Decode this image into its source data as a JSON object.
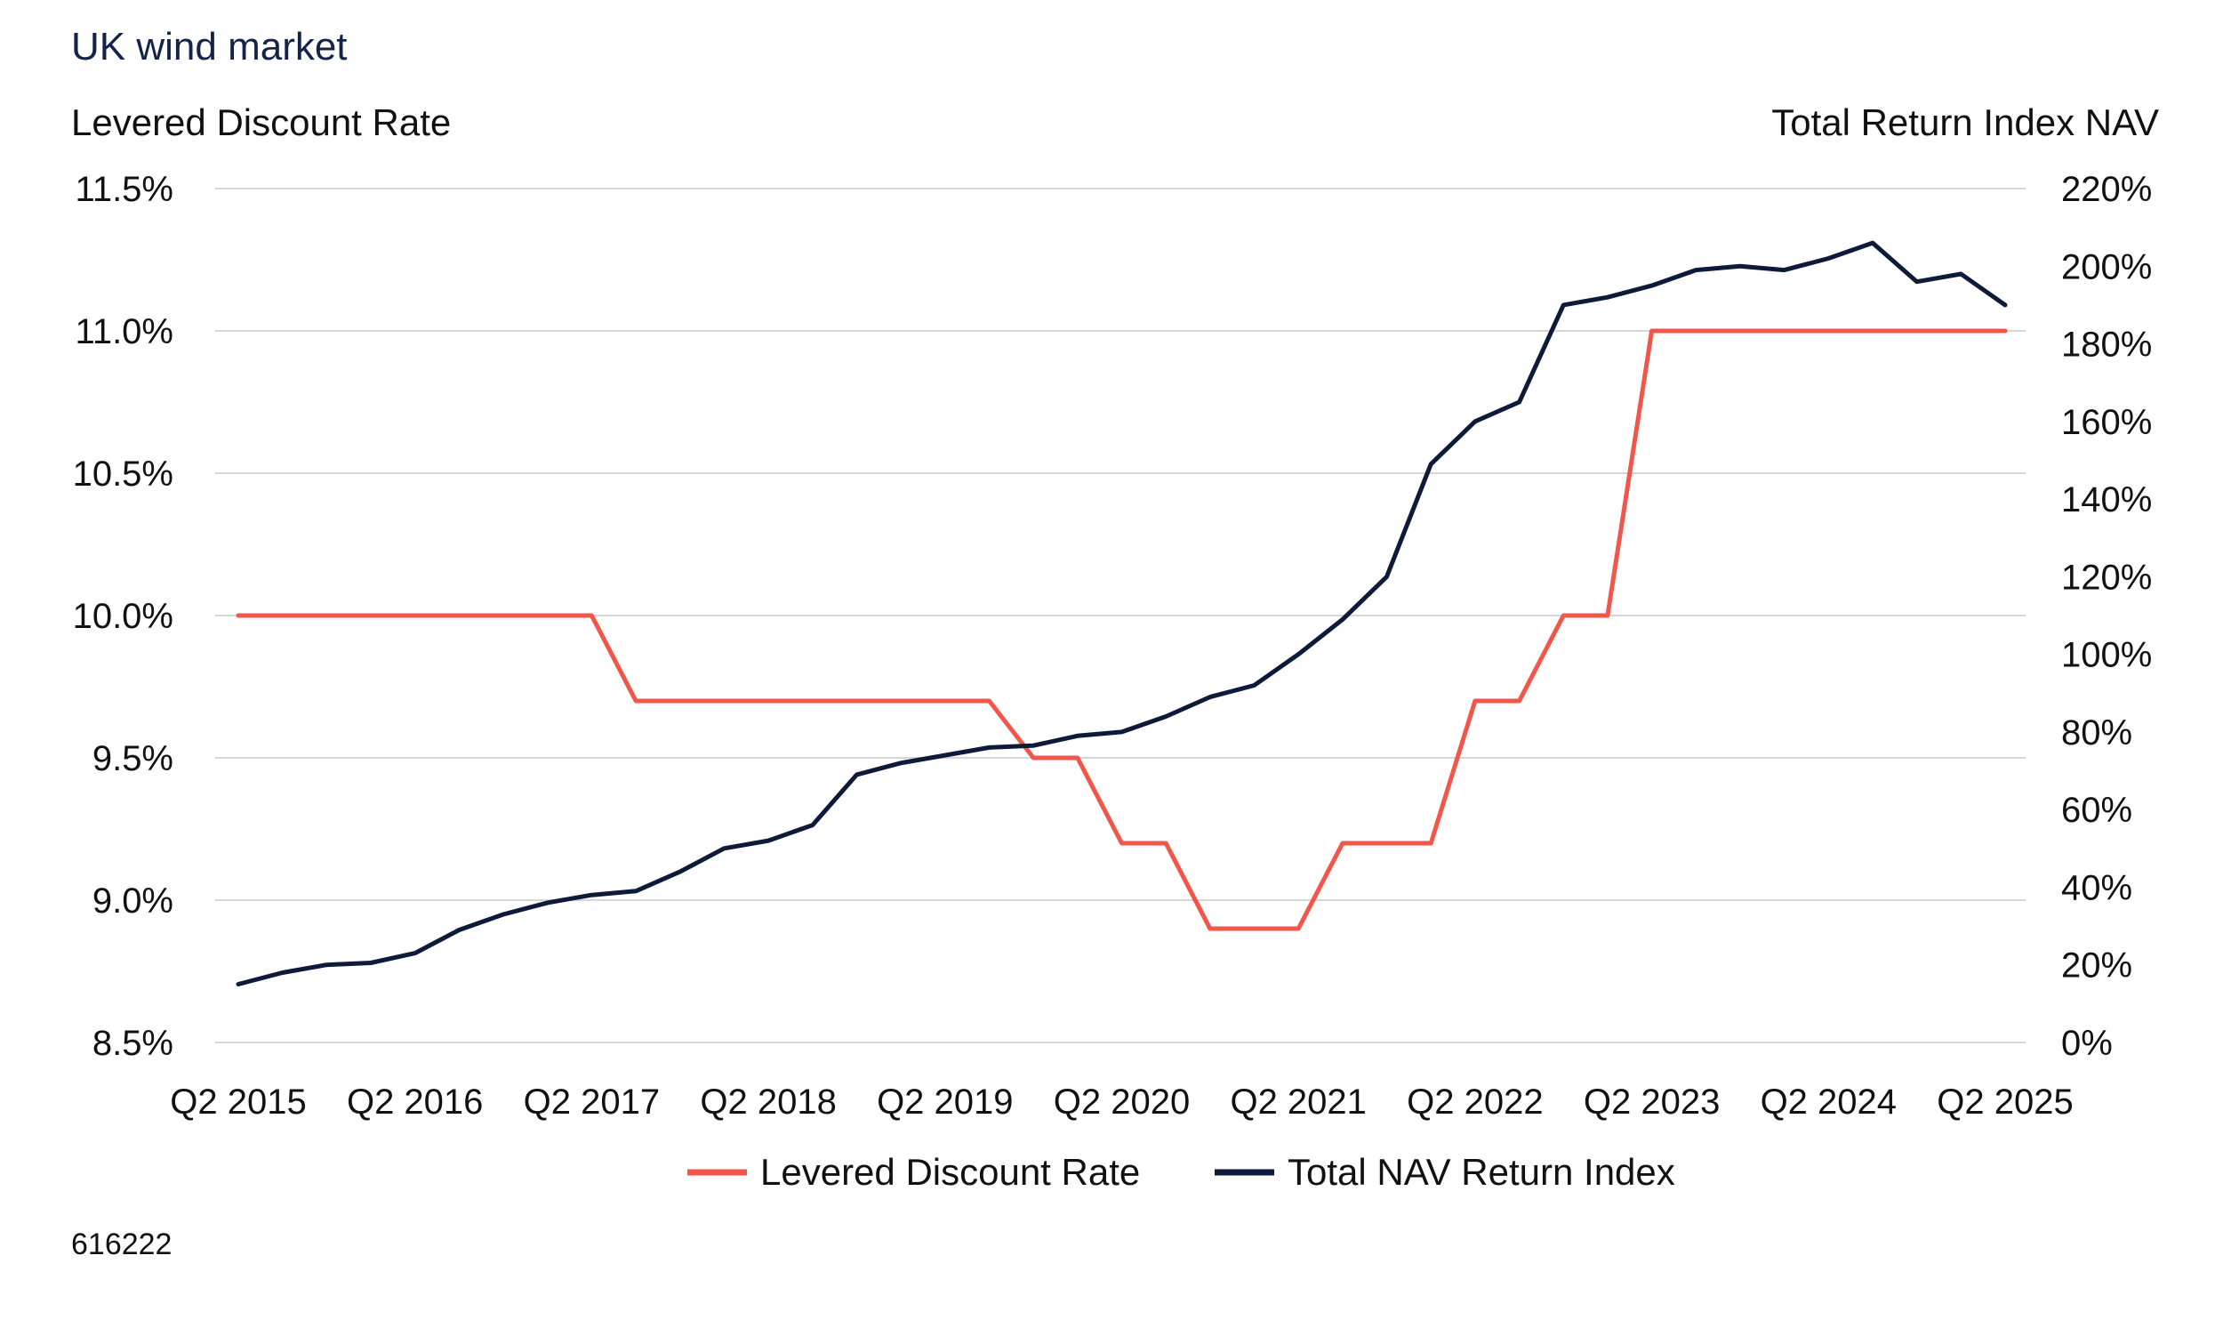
{
  "chart_data": {
    "type": "line",
    "title": "UK wind market",
    "ylabel_left": "Levered Discount Rate",
    "ylabel_right": "Total Return Index NAV",
    "ylim_left": [
      8.5,
      11.5
    ],
    "ylim_right": [
      0,
      220
    ],
    "yticks_left": [
      "11.5%",
      "11.0%",
      "10.5%",
      "10.0%",
      "9.5%",
      "9.0%",
      "8.5%"
    ],
    "yticks_right": [
      "220%",
      "200%",
      "180%",
      "160%",
      "140%",
      "120%",
      "100%",
      "80%",
      "60%",
      "40%",
      "20%",
      "0%"
    ],
    "x_tick_labels": [
      "Q2 2015",
      "Q2 2016",
      "Q2 2017",
      "Q2 2018",
      "Q2 2019",
      "Q2 2020",
      "Q2 2021",
      "Q2 2022",
      "Q2 2023",
      "Q2 2024",
      "Q2 2025"
    ],
    "x": [
      "Q2 2015",
      "Q3 2015",
      "Q4 2015",
      "Q1 2016",
      "Q2 2016",
      "Q3 2016",
      "Q4 2016",
      "Q1 2017",
      "Q2 2017",
      "Q3 2017",
      "Q4 2017",
      "Q1 2018",
      "Q2 2018",
      "Q3 2018",
      "Q4 2018",
      "Q1 2019",
      "Q2 2019",
      "Q3 2019",
      "Q4 2019",
      "Q1 2020",
      "Q2 2020",
      "Q3 2020",
      "Q4 2020",
      "Q1 2021",
      "Q2 2021",
      "Q3 2021",
      "Q4 2021",
      "Q1 2022",
      "Q2 2022",
      "Q3 2022",
      "Q4 2022",
      "Q1 2023",
      "Q2 2023",
      "Q3 2023",
      "Q4 2023",
      "Q1 2024",
      "Q2 2024",
      "Q3 2024",
      "Q4 2024",
      "Q1 2025",
      "Q2 2025"
    ],
    "series": [
      {
        "name": "Levered Discount Rate",
        "axis": "left",
        "color": "#f0564a",
        "values": [
          10.0,
          10.0,
          10.0,
          10.0,
          10.0,
          10.0,
          10.0,
          10.0,
          10.0,
          9.7,
          9.7,
          9.7,
          9.7,
          9.7,
          9.7,
          9.7,
          9.7,
          9.7,
          9.5,
          9.5,
          9.2,
          9.2,
          8.9,
          8.9,
          8.9,
          9.2,
          9.2,
          9.2,
          9.7,
          9.7,
          10.0,
          10.0,
          11.0,
          11.0,
          11.0,
          11.0,
          11.0,
          11.0,
          11.0,
          11.0,
          11.0
        ]
      },
      {
        "name": "Total NAV Return Index",
        "axis": "right",
        "color": "#0e1a3a",
        "values": [
          15,
          18,
          20,
          20.5,
          23,
          29,
          33,
          36,
          38,
          39,
          44,
          50,
          52,
          56,
          69,
          72,
          74,
          76,
          76.5,
          79,
          80,
          84,
          89,
          92,
          100,
          109,
          120,
          149,
          160,
          165,
          190,
          192,
          195,
          199,
          200,
          199,
          202,
          206,
          196,
          198,
          190
        ]
      }
    ],
    "legend_position": "bottom",
    "grid": true
  },
  "footer": "616222"
}
